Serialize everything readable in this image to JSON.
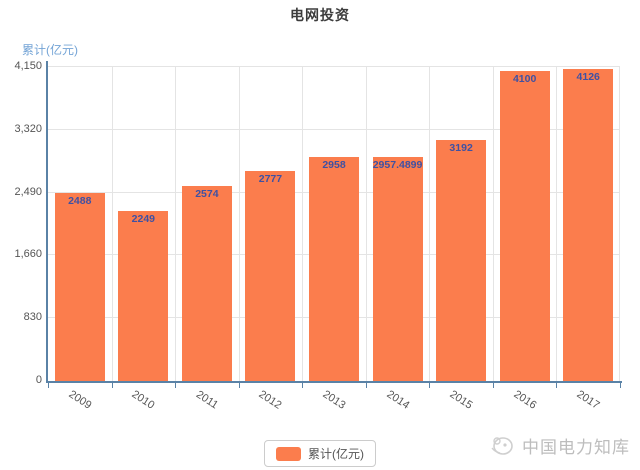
{
  "chart_data": {
    "type": "bar",
    "title": "电网投资",
    "xlabel": "",
    "ylabel": "累计(亿元)",
    "categories": [
      "2009",
      "2010",
      "2011",
      "2012",
      "2013",
      "2014",
      "2015",
      "2016",
      "2017"
    ],
    "series": [
      {
        "name": "累计(亿元)",
        "values": [
          2488,
          2249,
          2574,
          2777,
          2958,
          2957.4899,
          3192,
          4100,
          4126
        ],
        "value_labels": [
          "2488",
          "2249",
          "2574",
          "2777",
          "2958",
          "2957.4899",
          "3192",
          "4100",
          "4126"
        ]
      }
    ],
    "ylim": [
      0,
      4150
    ],
    "yticks": [
      0,
      830,
      1660,
      2490,
      3320,
      4150
    ],
    "ytick_labels": [
      "0",
      "830",
      "1,660",
      "2,490",
      "3,320",
      "4,150"
    ],
    "grid": "horizontal and vertical gridlines on",
    "legend_position": "bottom-center",
    "bar_color": "#fb7d4d",
    "value_label_color": "#3f51a3",
    "axis_line_color": "#5a82a6",
    "gridline_color": "#e4e4e4"
  },
  "legend": {
    "label": "累计(亿元)"
  },
  "watermark": {
    "text": "中国电力知库"
  }
}
